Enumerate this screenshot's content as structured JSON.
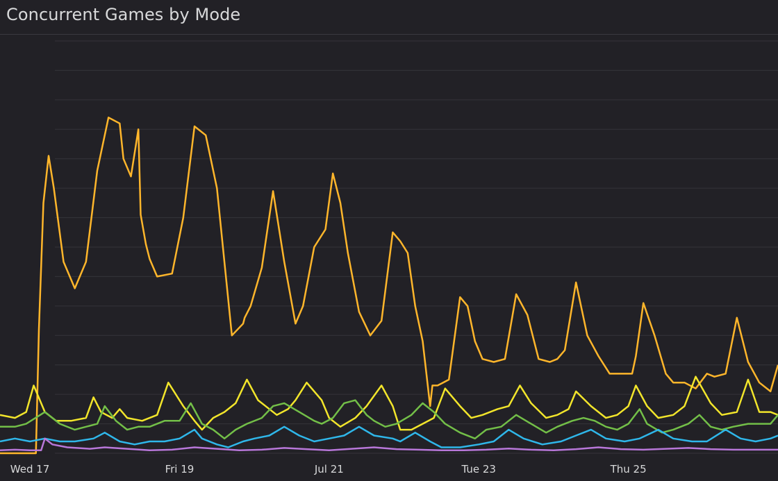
{
  "panel": {
    "title": "Concurrent Games by Mode"
  },
  "chart_data": {
    "type": "line",
    "title": "Concurrent Games by Mode",
    "xlabel": "",
    "ylabel": "",
    "x_tick_labels": [
      "Wed 17",
      "Fri 19",
      "Jul 21",
      "Tue 23",
      "Thu 25"
    ],
    "x_tick_days": [
      17,
      19,
      21,
      23,
      25
    ],
    "xlim": [
      16.6,
      27.0
    ],
    "ylim": [
      0,
      14
    ],
    "y_gridlines": 14,
    "y_tick_labels_visible": false,
    "grid": true,
    "legend": "none",
    "series": [
      {
        "color": "#ffb62b",
        "x": [
          16.6,
          16.95,
          17.08,
          17.12,
          17.18,
          17.25,
          17.32,
          17.45,
          17.6,
          17.75,
          17.9,
          18.05,
          18.2,
          18.25,
          18.35,
          18.45,
          18.48,
          18.55,
          18.6,
          18.7,
          18.9,
          19.05,
          19.2,
          19.35,
          19.5,
          19.7,
          19.85,
          19.87,
          19.95,
          20.1,
          20.25,
          20.4,
          20.55,
          20.65,
          20.8,
          20.95,
          21.05,
          21.15,
          21.25,
          21.4,
          21.55,
          21.7,
          21.85,
          21.95,
          22.05,
          22.15,
          22.25,
          22.35,
          22.38,
          22.45,
          22.6,
          22.75,
          22.85,
          22.95,
          23.05,
          23.2,
          23.35,
          23.5,
          23.65,
          23.8,
          23.95,
          24.05,
          24.15,
          24.3,
          24.45,
          24.6,
          24.75,
          24.95,
          25.05,
          25.1,
          25.2,
          25.35,
          25.5,
          25.6,
          25.75,
          25.9,
          26.05,
          26.15,
          26.3,
          26.45,
          26.6,
          26.75,
          26.9,
          27.0
        ],
        "y": [
          0,
          0,
          0,
          4.2,
          8.5,
          10.1,
          9.0,
          6.5,
          5.6,
          6.5,
          9.6,
          11.4,
          11.2,
          10.0,
          9.4,
          11.0,
          8.1,
          7.1,
          6.6,
          6.0,
          6.1,
          8.0,
          11.1,
          10.8,
          9.0,
          4.0,
          4.4,
          4.6,
          5.0,
          6.3,
          8.9,
          6.5,
          4.4,
          5.0,
          7.0,
          7.6,
          9.5,
          8.5,
          6.8,
          4.8,
          4.0,
          4.5,
          7.5,
          7.2,
          6.8,
          5.0,
          3.8,
          1.6,
          2.3,
          2.3,
          2.5,
          5.3,
          5.0,
          3.8,
          3.2,
          3.1,
          3.2,
          5.4,
          4.7,
          3.2,
          3.1,
          3.2,
          3.5,
          5.8,
          4.0,
          3.3,
          2.7,
          2.7,
          2.7,
          3.3,
          5.1,
          4.0,
          2.7,
          2.4,
          2.4,
          2.2,
          2.7,
          2.6,
          2.7,
          4.6,
          3.1,
          2.4,
          2.1,
          3.0
        ]
      },
      {
        "color": "#f2e52b",
        "x": [
          16.6,
          16.8,
          16.95,
          17.05,
          17.2,
          17.35,
          17.55,
          17.75,
          17.85,
          17.95,
          18.1,
          18.2,
          18.3,
          18.5,
          18.7,
          18.85,
          19.05,
          19.2,
          19.3,
          19.45,
          19.6,
          19.75,
          19.9,
          20.05,
          20.3,
          20.45,
          20.55,
          20.7,
          20.9,
          21.0,
          21.15,
          21.35,
          21.5,
          21.7,
          21.85,
          21.95,
          22.1,
          22.25,
          22.4,
          22.55,
          22.75,
          22.9,
          23.05,
          23.25,
          23.4,
          23.55,
          23.7,
          23.9,
          24.05,
          24.2,
          24.3,
          24.5,
          24.7,
          24.85,
          25.0,
          25.1,
          25.25,
          25.4,
          25.6,
          25.75,
          25.9,
          26.1,
          26.25,
          26.45,
          26.6,
          26.75,
          26.9,
          27.0
        ],
        "y": [
          1.3,
          1.2,
          1.4,
          2.3,
          1.4,
          1.1,
          1.1,
          1.2,
          1.9,
          1.4,
          1.2,
          1.5,
          1.2,
          1.1,
          1.3,
          2.4,
          1.6,
          1.1,
          0.8,
          1.2,
          1.4,
          1.7,
          2.5,
          1.8,
          1.3,
          1.5,
          1.8,
          2.4,
          1.8,
          1.2,
          0.9,
          1.2,
          1.6,
          2.3,
          1.6,
          0.8,
          0.8,
          1.0,
          1.2,
          2.2,
          1.6,
          1.2,
          1.3,
          1.5,
          1.6,
          2.3,
          1.7,
          1.2,
          1.3,
          1.5,
          2.1,
          1.6,
          1.2,
          1.3,
          1.6,
          2.3,
          1.6,
          1.2,
          1.3,
          1.6,
          2.6,
          1.7,
          1.3,
          1.4,
          2.5,
          1.4,
          1.4,
          1.3
        ]
      },
      {
        "color": "#73bf48",
        "x": [
          16.6,
          16.8,
          16.95,
          17.2,
          17.4,
          17.6,
          17.9,
          18.0,
          18.15,
          18.3,
          18.45,
          18.6,
          18.8,
          19.0,
          19.15,
          19.3,
          19.45,
          19.6,
          19.75,
          19.9,
          20.1,
          20.25,
          20.4,
          20.6,
          20.8,
          20.9,
          21.05,
          21.2,
          21.35,
          21.5,
          21.6,
          21.75,
          21.9,
          22.1,
          22.25,
          22.4,
          22.55,
          22.75,
          22.95,
          23.1,
          23.3,
          23.5,
          23.7,
          23.9,
          24.05,
          24.25,
          24.4,
          24.55,
          24.7,
          24.85,
          25.0,
          25.15,
          25.25,
          25.45,
          25.6,
          25.8,
          25.95,
          26.1,
          26.25,
          26.4,
          26.6,
          26.8,
          26.9,
          27.0
        ],
        "y": [
          0.9,
          0.9,
          1.0,
          1.4,
          1.0,
          0.8,
          1.0,
          1.6,
          1.1,
          0.8,
          0.9,
          0.9,
          1.1,
          1.1,
          1.7,
          1.0,
          0.8,
          0.5,
          0.8,
          1.0,
          1.2,
          1.6,
          1.7,
          1.4,
          1.1,
          1.0,
          1.2,
          1.7,
          1.8,
          1.3,
          1.1,
          0.9,
          1.0,
          1.3,
          1.7,
          1.4,
          1.0,
          0.7,
          0.5,
          0.8,
          0.9,
          1.3,
          1.0,
          0.7,
          0.9,
          1.1,
          1.2,
          1.1,
          0.9,
          0.8,
          1.0,
          1.5,
          1.0,
          0.7,
          0.8,
          1.0,
          1.3,
          0.9,
          0.8,
          0.9,
          1.0,
          1.0,
          1.0,
          1.3
        ]
      },
      {
        "color": "#2fb7ea",
        "x": [
          16.6,
          16.8,
          17.0,
          17.2,
          17.4,
          17.6,
          17.85,
          18.0,
          18.2,
          18.4,
          18.6,
          18.8,
          19.0,
          19.2,
          19.3,
          19.5,
          19.65,
          19.85,
          20.0,
          20.2,
          20.4,
          20.6,
          20.8,
          21.0,
          21.2,
          21.4,
          21.6,
          21.85,
          21.95,
          22.15,
          22.35,
          22.5,
          22.75,
          23.0,
          23.2,
          23.4,
          23.6,
          23.85,
          24.1,
          24.3,
          24.5,
          24.7,
          24.95,
          25.15,
          25.4,
          25.6,
          25.85,
          26.05,
          26.3,
          26.5,
          26.7,
          26.9,
          27.0
        ],
        "y": [
          0.4,
          0.5,
          0.4,
          0.5,
          0.4,
          0.4,
          0.5,
          0.7,
          0.4,
          0.3,
          0.4,
          0.4,
          0.5,
          0.8,
          0.5,
          0.3,
          0.2,
          0.4,
          0.5,
          0.6,
          0.9,
          0.6,
          0.4,
          0.5,
          0.6,
          0.9,
          0.6,
          0.5,
          0.4,
          0.7,
          0.4,
          0.2,
          0.2,
          0.3,
          0.4,
          0.8,
          0.5,
          0.3,
          0.4,
          0.6,
          0.8,
          0.5,
          0.4,
          0.5,
          0.8,
          0.5,
          0.4,
          0.4,
          0.8,
          0.5,
          0.4,
          0.5,
          0.6
        ]
      },
      {
        "color": "#b877d9",
        "x": [
          16.6,
          16.8,
          17.0,
          17.15,
          17.2,
          17.3,
          17.5,
          17.8,
          18.0,
          18.3,
          18.6,
          18.9,
          19.2,
          19.5,
          19.8,
          20.1,
          20.4,
          20.7,
          21.0,
          21.3,
          21.6,
          21.9,
          22.2,
          22.5,
          22.8,
          23.1,
          23.4,
          23.7,
          24.0,
          24.3,
          24.6,
          24.9,
          25.2,
          25.5,
          25.8,
          26.1,
          26.4,
          26.7,
          27.0
        ],
        "y": [
          0.1,
          0.12,
          0.1,
          0.1,
          0.5,
          0.3,
          0.2,
          0.15,
          0.2,
          0.15,
          0.1,
          0.12,
          0.2,
          0.15,
          0.1,
          0.12,
          0.18,
          0.14,
          0.1,
          0.15,
          0.2,
          0.14,
          0.12,
          0.1,
          0.1,
          0.12,
          0.16,
          0.12,
          0.1,
          0.14,
          0.2,
          0.14,
          0.12,
          0.15,
          0.18,
          0.14,
          0.12,
          0.12,
          0.12
        ]
      }
    ]
  }
}
